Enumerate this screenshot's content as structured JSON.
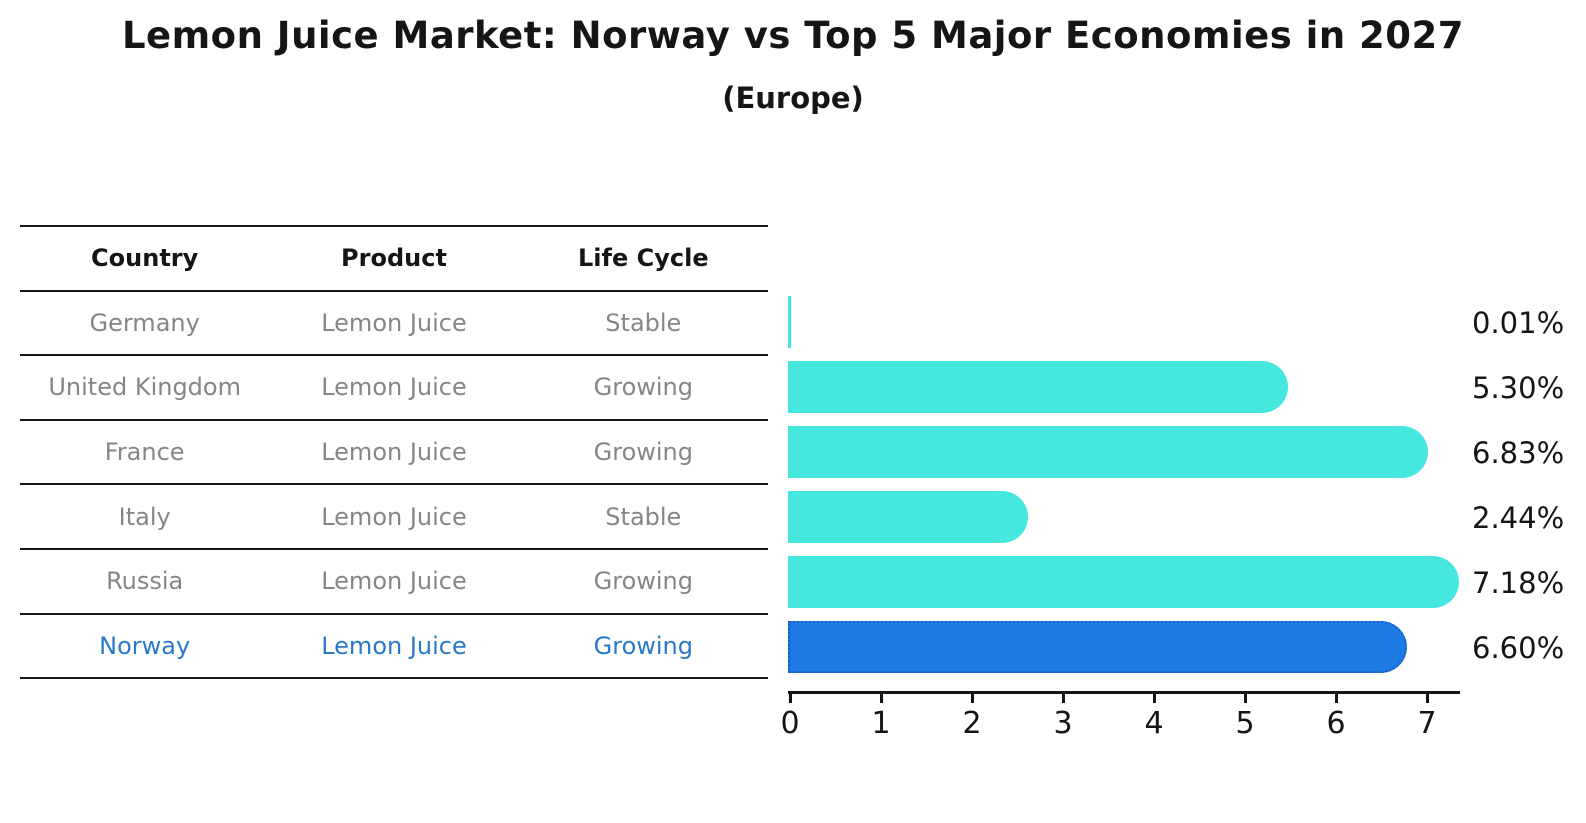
{
  "title": "Lemon Juice Market: Norway vs Top 5 Major Economies in 2027",
  "subtitle": "(Europe)",
  "table": {
    "headers": [
      "Country",
      "Product",
      "Life Cycle"
    ],
    "rows": [
      {
        "country": "Germany",
        "product": "Lemon Juice",
        "life_cycle": "Stable",
        "highlight": false
      },
      {
        "country": "United Kingdom",
        "product": "Lemon Juice",
        "life_cycle": "Growing",
        "highlight": false
      },
      {
        "country": "France",
        "product": "Lemon Juice",
        "life_cycle": "Growing",
        "highlight": false
      },
      {
        "country": "Italy",
        "product": "Lemon Juice",
        "life_cycle": "Stable",
        "highlight": false
      },
      {
        "country": "Russia",
        "product": "Lemon Juice",
        "life_cycle": "Growing",
        "highlight": false
      },
      {
        "country": "Norway",
        "product": "Lemon Juice",
        "life_cycle": "Growing",
        "highlight": true
      }
    ]
  },
  "chart_data": {
    "type": "bar",
    "orientation": "horizontal",
    "title": "Lemon Juice Market: Norway vs Top 5 Major Economies in 2027",
    "subtitle": "(Europe)",
    "categories": [
      "Germany",
      "United Kingdom",
      "France",
      "Italy",
      "Russia",
      "Norway"
    ],
    "values": [
      0.01,
      5.3,
      6.83,
      2.44,
      7.18,
      6.6
    ],
    "value_labels": [
      "0.01%",
      "5.30%",
      "6.83%",
      "2.44%",
      "7.18%",
      "6.60%"
    ],
    "x_ticks": [
      "0",
      "1",
      "2",
      "3",
      "4",
      "5",
      "6",
      "7"
    ],
    "xlim": [
      0,
      7.4
    ],
    "grid": false,
    "legend": false,
    "bar_color": "#45e7df",
    "highlight_bar_color": "#1d7ae4",
    "highlight_index": 5,
    "highlight_text_color": "#2979c9"
  }
}
